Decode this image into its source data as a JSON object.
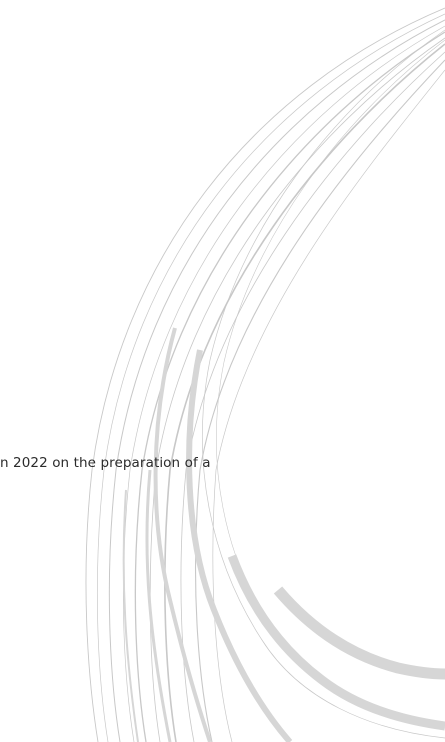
{
  "document": {
    "text_fragment": "n 2022 on the preparation of a"
  },
  "decoration": {
    "arc_color": "#c8c8c8",
    "arc_light_color": "#d6d6d6"
  }
}
